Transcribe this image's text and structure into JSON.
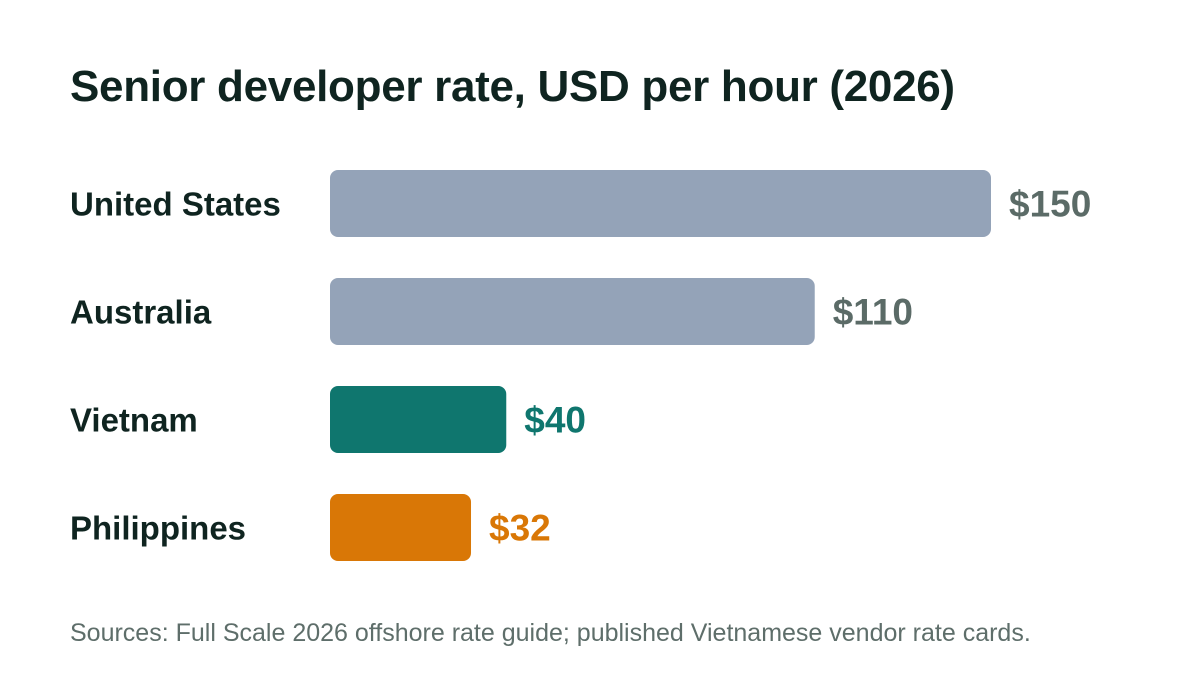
{
  "chart_data": {
    "type": "bar",
    "orientation": "horizontal",
    "title": "Senior developer rate, USD per hour (2026)",
    "categories": [
      "United States",
      "Australia",
      "Vietnam",
      "Philippines"
    ],
    "values": [
      150,
      110,
      40,
      32
    ],
    "value_labels": [
      "$150",
      "$110",
      "$40",
      "$32"
    ],
    "bar_colors": [
      "#94a3b8",
      "#94a3b8",
      "#0f766e",
      "#d97706"
    ],
    "label_colors": [
      "#5b6b67",
      "#5b6b67",
      "#0f766e",
      "#d97706"
    ],
    "xlim": [
      0,
      150
    ],
    "grid": false,
    "legend": "none"
  },
  "footer": {
    "source": "Sources: Full Scale 2026 offshore rate guide; published Vietnamese vendor rate cards."
  }
}
